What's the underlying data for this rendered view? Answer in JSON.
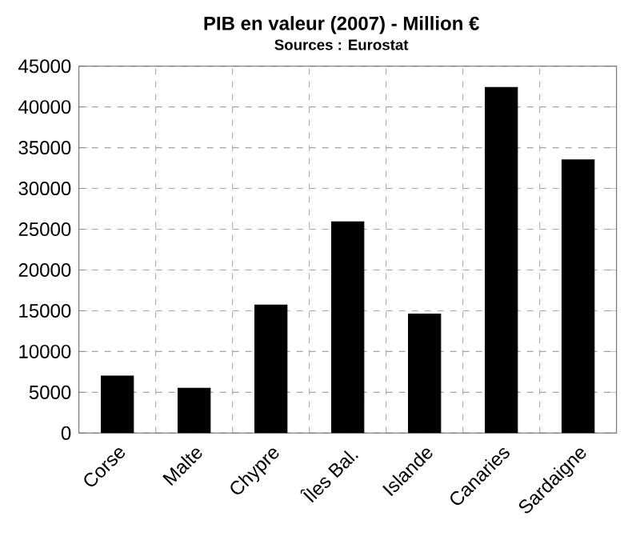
{
  "chart_data": {
    "type": "bar",
    "title": "PIB en valeur (2007) - Million €",
    "subtitle": "Sources : Eurostat",
    "categories": [
      "Corse",
      "Malte",
      "Chypre",
      "Îles Bal.",
      "Islande",
      "Canaries",
      "Sardaigne"
    ],
    "values": [
      7000,
      5500,
      15700,
      25900,
      14600,
      42400,
      33500
    ],
    "color": "#000000",
    "ylim": [
      0,
      45000
    ],
    "yticks": [
      0,
      5000,
      10000,
      15000,
      20000,
      25000,
      30000,
      35000,
      40000,
      45000
    ],
    "grid": true
  }
}
